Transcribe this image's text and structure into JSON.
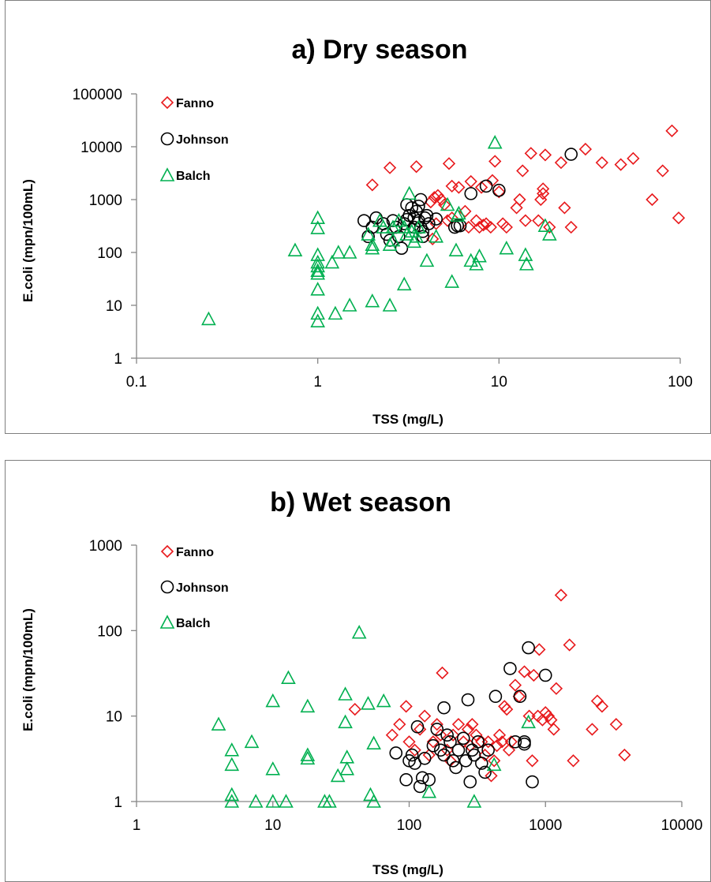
{
  "chart_data": [
    {
      "type": "scatter",
      "title": "a) Dry season",
      "xlabel": "TSS (mg/L)",
      "ylabel": "E.coli (mpn/100mL)",
      "xscale": "log",
      "yscale": "log",
      "xlim": [
        0.1,
        100
      ],
      "ylim": [
        1,
        100000
      ],
      "xticks": [
        "0.1",
        "1",
        "10",
        "100"
      ],
      "yticks": [
        "1",
        "10",
        "100",
        "1000",
        "10000",
        "100000"
      ],
      "grid": false,
      "legend": "top-left",
      "series": [
        {
          "name": "Fanno",
          "marker": "diamond",
          "color": "#e8191c",
          "points": [
            [
              2.0,
              1900
            ],
            [
              2.5,
              4000
            ],
            [
              3.5,
              4200
            ],
            [
              5.3,
              4800
            ],
            [
              5.5,
              1800
            ],
            [
              6.0,
              1700
            ],
            [
              7.0,
              2200
            ],
            [
              8.0,
              1700
            ],
            [
              9.2,
              2300
            ],
            [
              9.5,
              5300
            ],
            [
              10.0,
              1400
            ],
            [
              4.2,
              900
            ],
            [
              4.4,
              1100
            ],
            [
              4.6,
              1200
            ],
            [
              4.8,
              1000
            ],
            [
              5.0,
              800
            ],
            [
              6.5,
              600
            ],
            [
              7.5,
              400
            ],
            [
              8.5,
              350
            ],
            [
              9.0,
              300
            ],
            [
              10.5,
              350
            ],
            [
              11.0,
              300
            ],
            [
              12.5,
              700
            ],
            [
              13.0,
              1000
            ],
            [
              13.5,
              3500
            ],
            [
              15.0,
              7500
            ],
            [
              17.0,
              1000
            ],
            [
              18.0,
              7000
            ],
            [
              17.5,
              1600
            ],
            [
              17.5,
              1300
            ],
            [
              16.5,
              400
            ],
            [
              14.0,
              400
            ],
            [
              19.0,
              300
            ],
            [
              22.0,
              5000
            ],
            [
              23.0,
              700
            ],
            [
              25.0,
              300
            ],
            [
              30.0,
              9000
            ],
            [
              37.0,
              5000
            ],
            [
              47.0,
              4600
            ],
            [
              55.0,
              6000
            ],
            [
              70.0,
              1000
            ],
            [
              80.0,
              3500
            ],
            [
              90.0,
              20000
            ],
            [
              98.0,
              450
            ],
            [
              4.5,
              350
            ],
            [
              5.5,
              450
            ],
            [
              6.8,
              300
            ],
            [
              7.8,
              300
            ],
            [
              8.2,
              330
            ],
            [
              4.3,
              180
            ],
            [
              5.2,
              400
            ]
          ]
        },
        {
          "name": "Johnson",
          "marker": "circle",
          "color": "#000000",
          "points": [
            [
              1.8,
              400
            ],
            [
              1.9,
              200
            ],
            [
              2.0,
              300
            ],
            [
              2.1,
              450
            ],
            [
              2.3,
              350
            ],
            [
              2.4,
              220
            ],
            [
              2.5,
              170
            ],
            [
              2.6,
              400
            ],
            [
              2.7,
              300
            ],
            [
              2.8,
              200
            ],
            [
              2.9,
              120
            ],
            [
              3.0,
              350
            ],
            [
              3.1,
              800
            ],
            [
              3.2,
              500
            ],
            [
              3.3,
              700
            ],
            [
              3.4,
              450
            ],
            [
              3.5,
              600
            ],
            [
              3.6,
              400
            ],
            [
              3.7,
              300
            ],
            [
              3.8,
              250
            ],
            [
              3.9,
              450
            ],
            [
              4.0,
              500
            ],
            [
              4.1,
              350
            ],
            [
              3.7,
              1000
            ],
            [
              4.5,
              430
            ],
            [
              5.7,
              300
            ],
            [
              5.9,
              320
            ],
            [
              6.1,
              320
            ],
            [
              7.0,
              1300
            ],
            [
              8.5,
              1800
            ],
            [
              10.0,
              1500
            ],
            [
              25.0,
              7200
            ],
            [
              3.8,
              200
            ],
            [
              3.1,
              420
            ],
            [
              3.4,
              300
            ],
            [
              3.6,
              750
            ]
          ]
        },
        {
          "name": "Balch",
          "marker": "triangle",
          "color": "#00b050",
          "points": [
            [
              0.25,
              5.5
            ],
            [
              0.75,
              110
            ],
            [
              1.0,
              450
            ],
            [
              1.0,
              290
            ],
            [
              1.0,
              90
            ],
            [
              1.0,
              65
            ],
            [
              1.0,
              55
            ],
            [
              1.0,
              45
            ],
            [
              1.0,
              40
            ],
            [
              1.0,
              20
            ],
            [
              1.0,
              7
            ],
            [
              1.0,
              5
            ],
            [
              1.2,
              65
            ],
            [
              1.25,
              7
            ],
            [
              1.3,
              100
            ],
            [
              1.5,
              100
            ],
            [
              1.5,
              10
            ],
            [
              1.9,
              220
            ],
            [
              2.0,
              140
            ],
            [
              2.0,
              120
            ],
            [
              2.0,
              12
            ],
            [
              2.2,
              400
            ],
            [
              2.3,
              300
            ],
            [
              2.5,
              10
            ],
            [
              2.5,
              140
            ],
            [
              2.6,
              170
            ],
            [
              2.6,
              300
            ],
            [
              2.8,
              400
            ],
            [
              3.0,
              25
            ],
            [
              3.0,
              300
            ],
            [
              3.1,
              220
            ],
            [
              3.2,
              1300
            ],
            [
              3.3,
              250
            ],
            [
              3.4,
              160
            ],
            [
              3.5,
              200
            ],
            [
              3.6,
              300
            ],
            [
              4.0,
              70
            ],
            [
              4.5,
              200
            ],
            [
              5.2,
              800
            ],
            [
              5.5,
              28
            ],
            [
              5.8,
              110
            ],
            [
              5.9,
              500
            ],
            [
              6.0,
              550
            ],
            [
              7.0,
              70
            ],
            [
              7.5,
              60
            ],
            [
              7.8,
              85
            ],
            [
              9.5,
              12000
            ],
            [
              11.0,
              120
            ],
            [
              14.0,
              90
            ],
            [
              14.2,
              60
            ],
            [
              18.0,
              320
            ],
            [
              19.0,
              220
            ]
          ]
        }
      ]
    },
    {
      "type": "scatter",
      "title": "b) Wet season",
      "xlabel": "TSS (mg/L)",
      "ylabel": "E.coli (mpn/100mL)",
      "xscale": "log",
      "yscale": "log",
      "xlim": [
        1,
        10000
      ],
      "ylim": [
        1,
        1000
      ],
      "xticks": [
        "1",
        "10",
        "100",
        "1000",
        "10000"
      ],
      "yticks": [
        "1",
        "10",
        "100",
        "1000"
      ],
      "grid": false,
      "legend": "top-left",
      "series": [
        {
          "name": "Fanno",
          "marker": "diamond",
          "color": "#e8191c",
          "points": [
            [
              40,
              12
            ],
            [
              75,
              6
            ],
            [
              85,
              8
            ],
            [
              95,
              13
            ],
            [
              100,
              5
            ],
            [
              110,
              4
            ],
            [
              120,
              7
            ],
            [
              130,
              10
            ],
            [
              140,
              3.5
            ],
            [
              150,
              5
            ],
            [
              160,
              8
            ],
            [
              170,
              6
            ],
            [
              175,
              32
            ],
            [
              190,
              4
            ],
            [
              200,
              3
            ],
            [
              210,
              6
            ],
            [
              230,
              8
            ],
            [
              250,
              5
            ],
            [
              270,
              7
            ],
            [
              280,
              4.5
            ],
            [
              290,
              8
            ],
            [
              310,
              6
            ],
            [
              340,
              5
            ],
            [
              360,
              3.5
            ],
            [
              380,
              5
            ],
            [
              400,
              2
            ],
            [
              420,
              3
            ],
            [
              440,
              4.5
            ],
            [
              460,
              6
            ],
            [
              480,
              5
            ],
            [
              500,
              13
            ],
            [
              520,
              12
            ],
            [
              540,
              4
            ],
            [
              560,
              5
            ],
            [
              600,
              23
            ],
            [
              640,
              17
            ],
            [
              700,
              33
            ],
            [
              760,
              10
            ],
            [
              820,
              30
            ],
            [
              880,
              10
            ],
            [
              900,
              60
            ],
            [
              950,
              9
            ],
            [
              1000,
              11
            ],
            [
              1050,
              10
            ],
            [
              1100,
              9
            ],
            [
              1150,
              7
            ],
            [
              1200,
              21
            ],
            [
              1300,
              260
            ],
            [
              1500,
              68
            ],
            [
              1600,
              3
            ],
            [
              2200,
              7
            ],
            [
              2400,
              15
            ],
            [
              2600,
              13
            ],
            [
              3300,
              8
            ],
            [
              3800,
              3.5
            ],
            [
              800,
              3
            ]
          ]
        },
        {
          "name": "Johnson",
          "marker": "circle",
          "color": "#000000",
          "points": [
            [
              80,
              3.7
            ],
            [
              95,
              1.8
            ],
            [
              100,
              3
            ],
            [
              105,
              3.5
            ],
            [
              110,
              2.8
            ],
            [
              115,
              7.5
            ],
            [
              120,
              1.5
            ],
            [
              125,
              1.9
            ],
            [
              130,
              3.2
            ],
            [
              140,
              1.8
            ],
            [
              150,
              4.5
            ],
            [
              160,
              7
            ],
            [
              170,
              4
            ],
            [
              180,
              3.5
            ],
            [
              190,
              6
            ],
            [
              200,
              5
            ],
            [
              210,
              3
            ],
            [
              220,
              2.5
            ],
            [
              230,
              4
            ],
            [
              250,
              5.5
            ],
            [
              260,
              3
            ],
            [
              270,
              15.5
            ],
            [
              280,
              1.7
            ],
            [
              290,
              4
            ],
            [
              300,
              3.5
            ],
            [
              320,
              5
            ],
            [
              340,
              2.8
            ],
            [
              360,
              2.2
            ],
            [
              380,
              4
            ],
            [
              430,
              17
            ],
            [
              550,
              36
            ],
            [
              600,
              5
            ],
            [
              650,
              17
            ],
            [
              700,
              5
            ],
            [
              750,
              63
            ],
            [
              800,
              1.7
            ],
            [
              1000,
              30
            ],
            [
              180,
              12.5
            ],
            [
              700,
              4.7
            ]
          ]
        },
        {
          "name": "Balch",
          "marker": "triangle",
          "color": "#00b050",
          "points": [
            [
              4,
              8
            ],
            [
              5,
              4
            ],
            [
              5,
              2.7
            ],
            [
              5,
              1.2
            ],
            [
              5,
              1
            ],
            [
              7,
              5
            ],
            [
              7.5,
              1
            ],
            [
              10,
              1
            ],
            [
              10,
              15
            ],
            [
              10,
              2.4
            ],
            [
              12.5,
              1
            ],
            [
              13,
              28
            ],
            [
              18,
              13
            ],
            [
              18,
              3.5
            ],
            [
              18,
              3.2
            ],
            [
              24,
              1
            ],
            [
              26,
              1
            ],
            [
              30,
              2
            ],
            [
              34,
              18
            ],
            [
              34,
              8.5
            ],
            [
              35,
              3.3
            ],
            [
              35,
              2.4
            ],
            [
              43,
              95
            ],
            [
              50,
              14
            ],
            [
              52,
              1.2
            ],
            [
              55,
              1
            ],
            [
              55,
              4.8
            ],
            [
              65,
              15
            ],
            [
              140,
              1.3
            ],
            [
              300,
              1
            ],
            [
              420,
              2.7
            ],
            [
              750,
              8.5
            ]
          ]
        }
      ]
    }
  ]
}
